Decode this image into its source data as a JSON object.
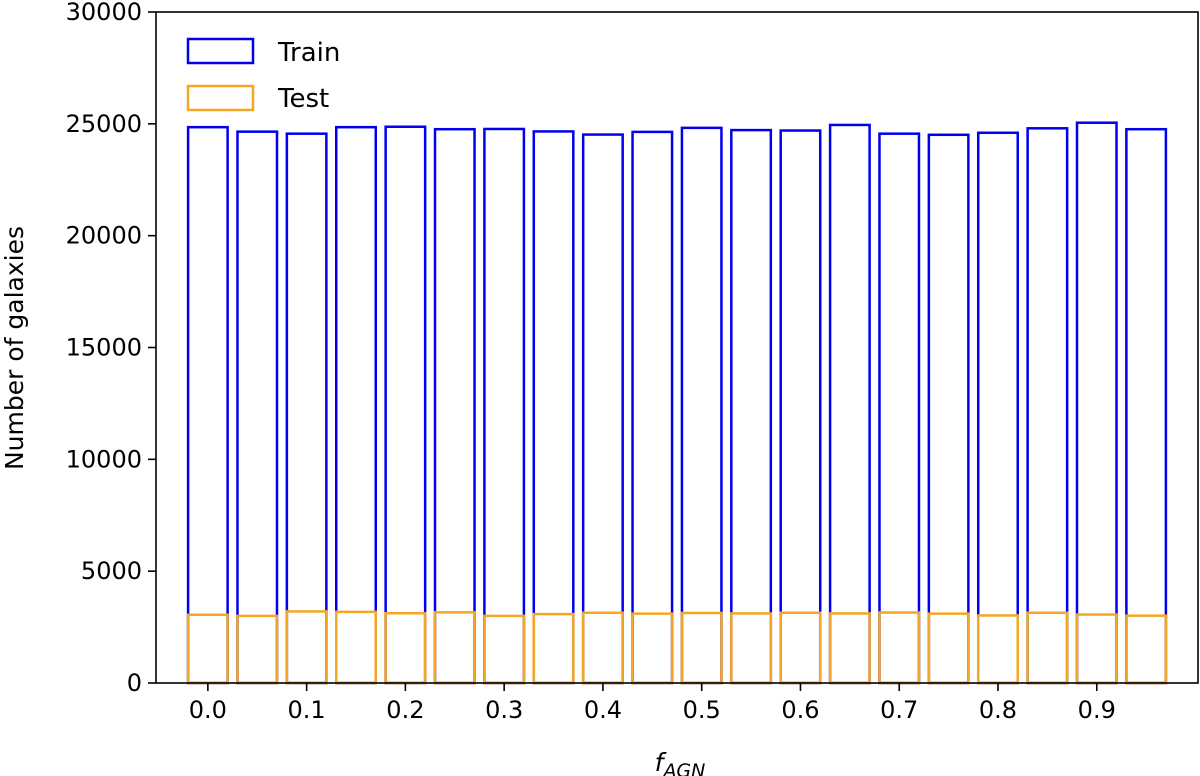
{
  "chart_data": {
    "type": "bar",
    "title": "",
    "xlabel": "f",
    "xlabel_subscript": "AGN",
    "ylabel": "Number of galaxies",
    "ylim": [
      0,
      30000
    ],
    "xlim": [
      -0.0525,
      1.0025
    ],
    "yticks": [
      0,
      5000,
      10000,
      15000,
      20000,
      25000,
      30000
    ],
    "xticks": [
      0.0,
      0.1,
      0.2,
      0.3,
      0.4,
      0.5,
      0.6,
      0.7,
      0.8,
      0.9
    ],
    "xtick_labels": [
      "0.0",
      "0.1",
      "0.2",
      "0.3",
      "0.4",
      "0.5",
      "0.6",
      "0.7",
      "0.8",
      "0.9"
    ],
    "bin_width": 0.05,
    "bar_fill_fraction": 0.8,
    "x": [
      0.0,
      0.05,
      0.1,
      0.15,
      0.2,
      0.25,
      0.3,
      0.35,
      0.4,
      0.45,
      0.5,
      0.55,
      0.6,
      0.65,
      0.7,
      0.75,
      0.8,
      0.85,
      0.9,
      0.95
    ],
    "legend_position": "top-left",
    "grid": false,
    "series": [
      {
        "name": "Train",
        "color": "#0000ee",
        "style": "outline",
        "values": [
          24850,
          24650,
          24560,
          24850,
          24870,
          24760,
          24770,
          24660,
          24520,
          24640,
          24820,
          24720,
          24700,
          24950,
          24560,
          24510,
          24600,
          24800,
          25050,
          24760
        ]
      },
      {
        "name": "Test",
        "color": "#f5a623",
        "style": "outline",
        "values": [
          3050,
          3000,
          3200,
          3180,
          3120,
          3160,
          3000,
          3080,
          3140,
          3100,
          3130,
          3110,
          3140,
          3110,
          3150,
          3100,
          3020,
          3140,
          3060,
          3010
        ]
      }
    ]
  }
}
